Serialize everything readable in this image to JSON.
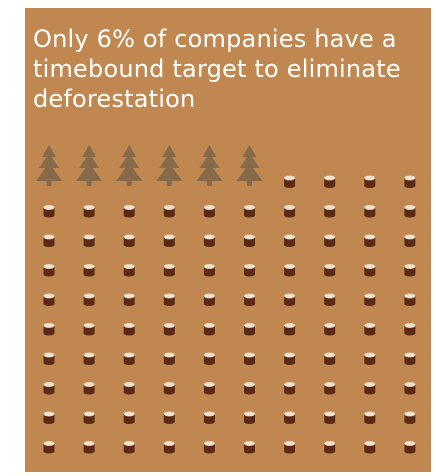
{
  "headline": "Only 6% of companies have a timebound target to eliminate deforestation",
  "graphic": {
    "total_units": 100,
    "standing_trees": 6,
    "columns": 10,
    "icon_meanings": {
      "standing": "tree-icon",
      "cleared": "stump-icon"
    },
    "colors": {
      "background": "#c08850",
      "tree": "#876a4a",
      "stump_side": "#5a2a16",
      "stump_top": "#f2e2cf",
      "text": "#ffffff"
    }
  }
}
